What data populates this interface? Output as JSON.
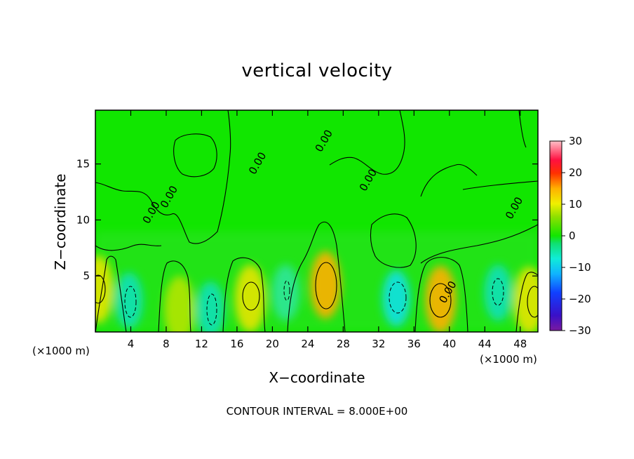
{
  "chart_data": {
    "type": "heatmap",
    "title": "vertical velocity",
    "xlabel": "X−coordinate",
    "ylabel": "Z−coordinate",
    "x_multiplier_label": "(×1000 m)",
    "x_ticks": [
      4,
      8,
      12,
      16,
      20,
      24,
      28,
      32,
      36,
      40,
      44,
      48
    ],
    "y_ticks": [
      5,
      10,
      15
    ],
    "xlim": [
      0,
      50
    ],
    "ylim": [
      0,
      19.8
    ],
    "colorbar": {
      "range": [
        -30,
        30
      ],
      "ticks": [
        30,
        20,
        10,
        0,
        -10,
        -20,
        -30
      ],
      "tick_labels": [
        "30",
        "20",
        "10",
        "0",
        "−10",
        "−20",
        "−30"
      ]
    },
    "contour_interval_label": "CONTOUR INTERVAL = 8.000E+00",
    "contour_label": "0.00",
    "updraft_cores": [
      {
        "x": 0.3,
        "z": 3.8,
        "w": 9
      },
      {
        "x": 9.5,
        "z": 2.0,
        "w": 8
      },
      {
        "x": 17.5,
        "z": 3.0,
        "w": 10
      },
      {
        "x": 26.0,
        "z": 4.2,
        "w": 12
      },
      {
        "x": 39.0,
        "z": 2.9,
        "w": 11
      },
      {
        "x": 49.0,
        "z": 2.8,
        "w": 10
      }
    ],
    "downdraft_cores": [
      {
        "x": 3.8,
        "z": 2.8,
        "w": -9
      },
      {
        "x": 13.0,
        "z": 2.0,
        "w": -8
      },
      {
        "x": 21.5,
        "z": 3.5,
        "w": -7
      },
      {
        "x": 34.0,
        "z": 3.0,
        "w": -11
      },
      {
        "x": 45.5,
        "z": 3.5,
        "w": -8
      }
    ]
  }
}
